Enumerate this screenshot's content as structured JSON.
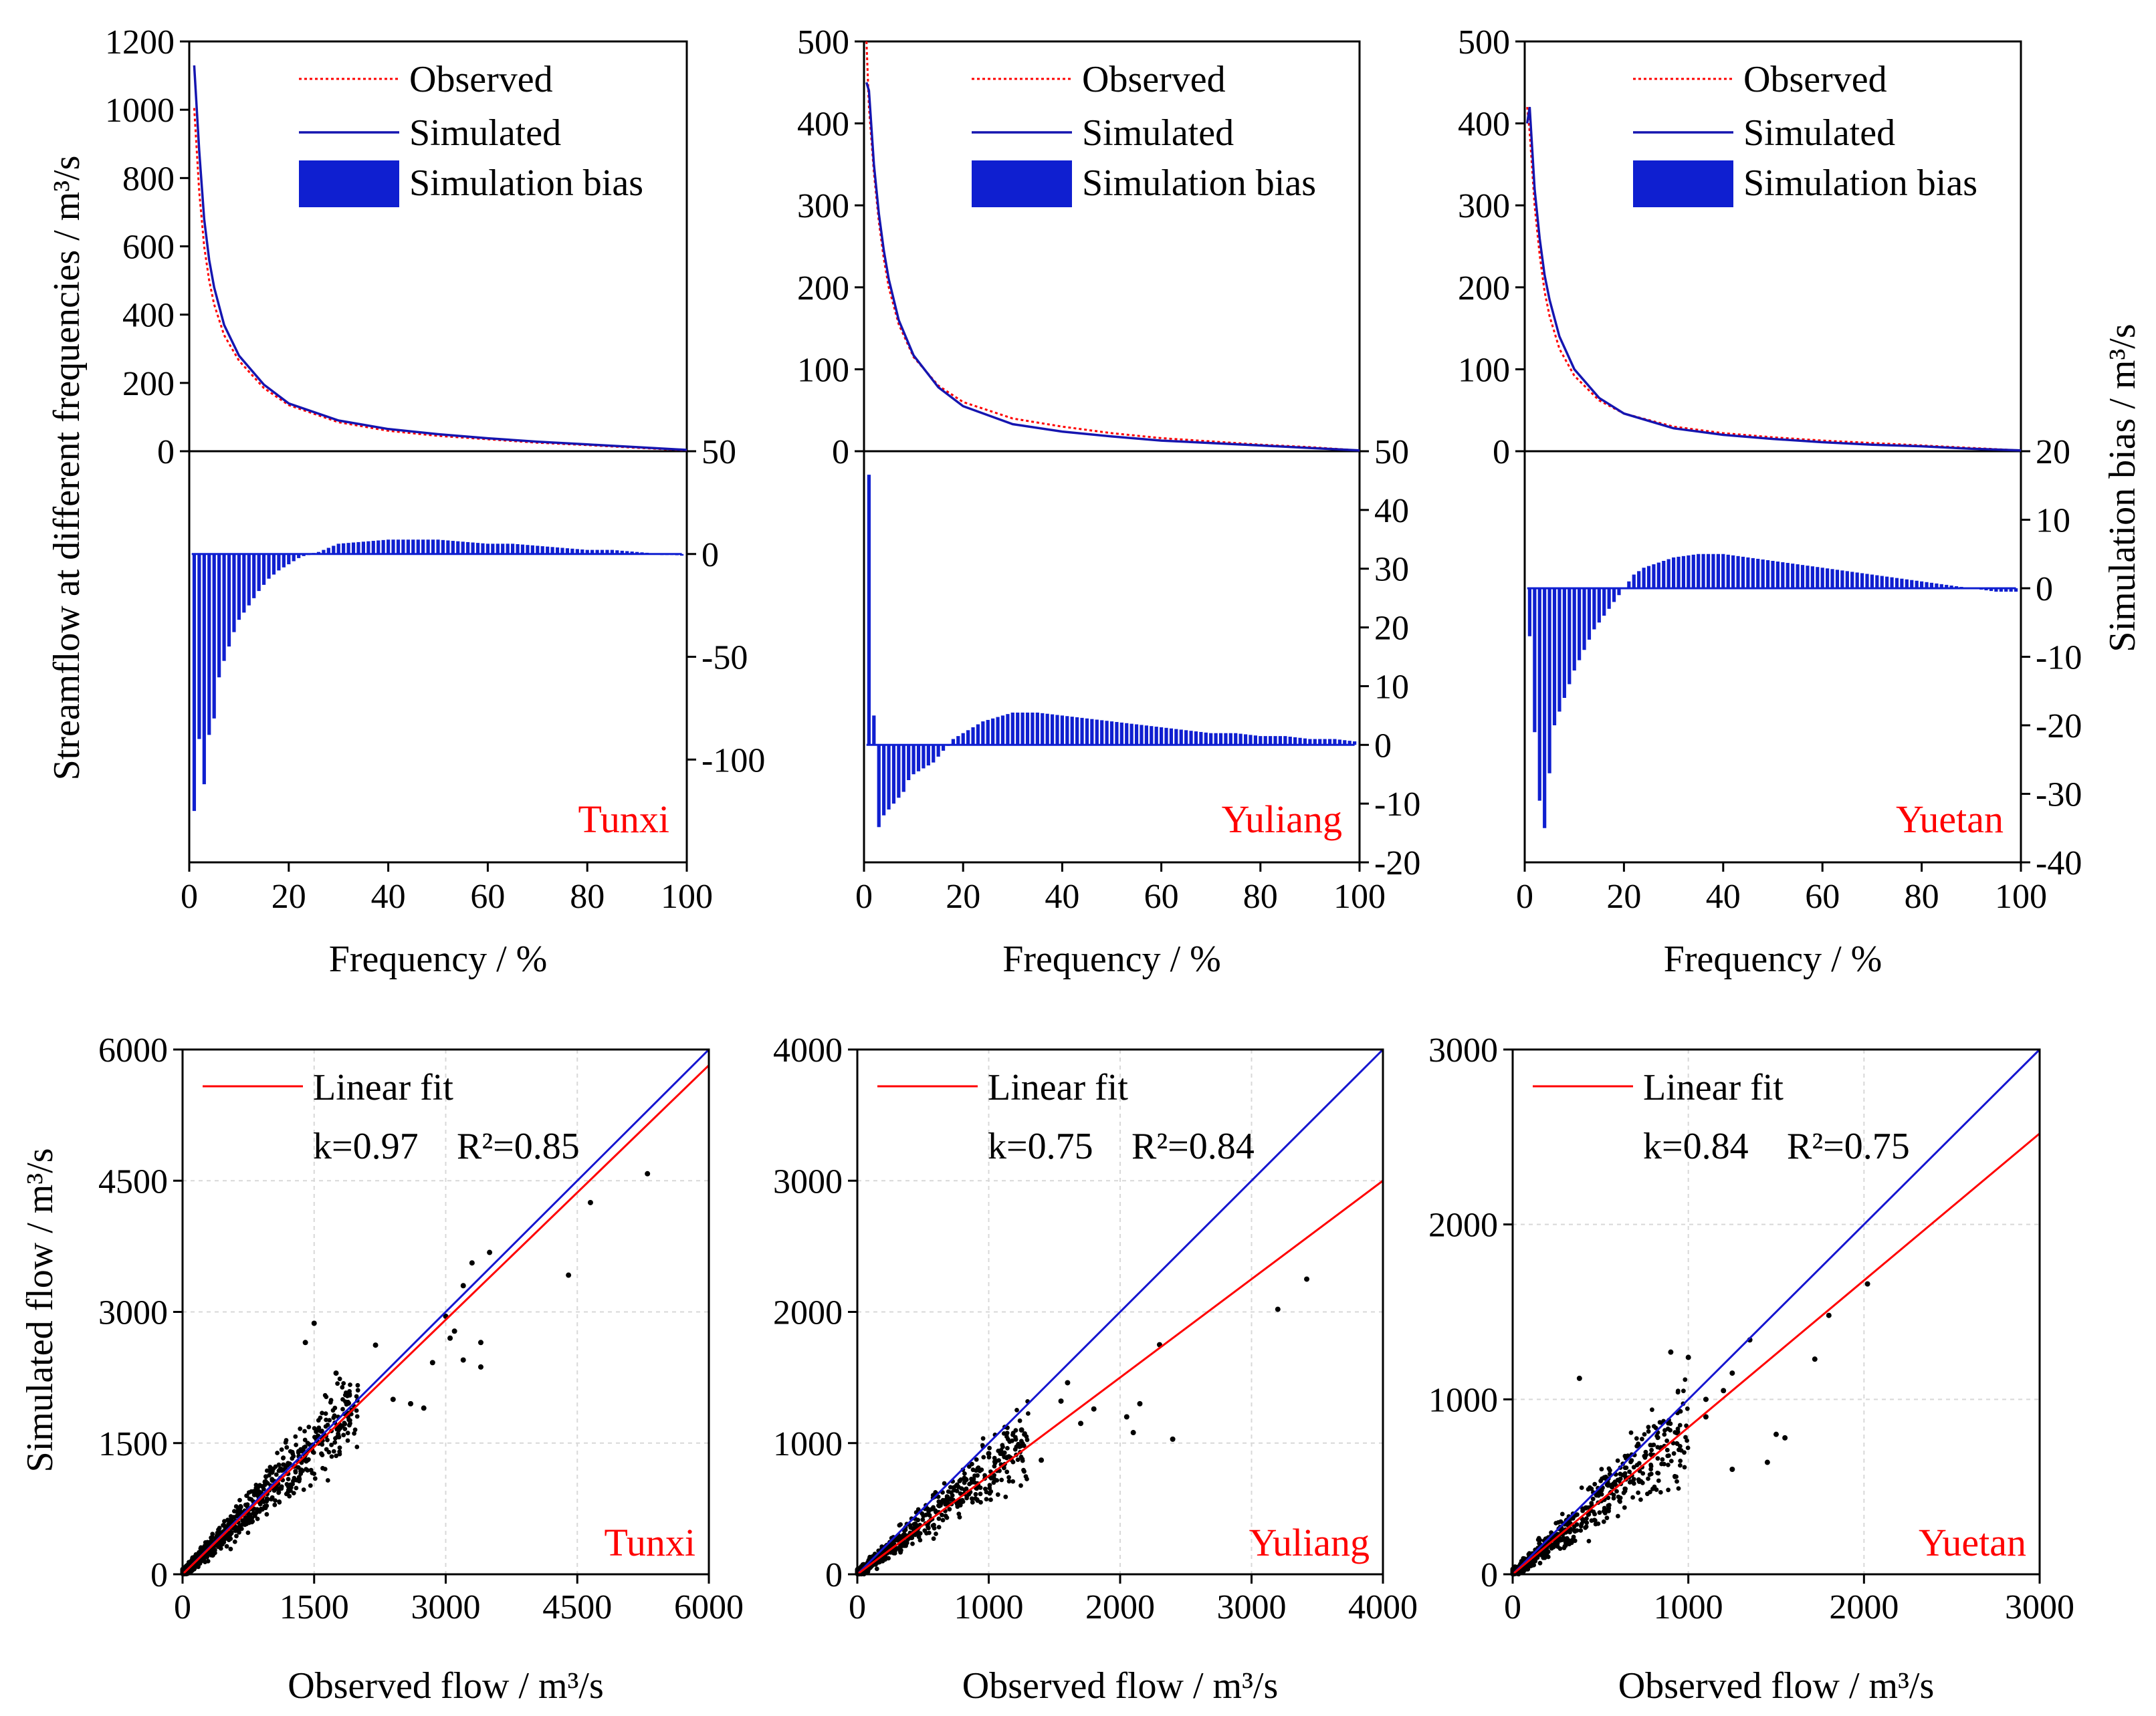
{
  "colors": {
    "observed": "#ff0000",
    "simulated": "#1515b0",
    "bias": "#0f1fd0",
    "fit": "#ff0000",
    "one_to_one": "#1515d0",
    "station": "#ff0000",
    "scatter": "#000000"
  },
  "labels": {
    "duration_ylabel": "Streamflow at different frequencies / m³/s",
    "bias_ylabel": "Simulation bias / m³/s",
    "freq_xlabel": "Frequency / %",
    "scatter_ylabel": "Simulated flow / m³/s",
    "scatter_xlabel": "Observed flow / m³/s"
  },
  "chart_data": [
    {
      "type": "line",
      "station": "Tunxi",
      "xlabel": "Frequency / %",
      "ylabel": "Streamflow at different frequencies / m³/s",
      "xlim": [
        0,
        100
      ],
      "ylim": [
        0,
        1200
      ],
      "xticks": [
        0,
        20,
        40,
        60,
        80,
        100
      ],
      "yticks": [
        0,
        200,
        400,
        600,
        800,
        1000,
        1200
      ],
      "legend": [
        "Observed",
        "Simulated",
        "Simulation bias"
      ],
      "legend_position": "top-right",
      "x": [
        1,
        2,
        3,
        4,
        5,
        7,
        10,
        15,
        20,
        30,
        40,
        50,
        60,
        70,
        80,
        90,
        100
      ],
      "series": [
        {
          "name": "Observed",
          "values": [
            1005,
            760,
            600,
            500,
            430,
            340,
            265,
            185,
            135,
            85,
            60,
            45,
            35,
            25,
            18,
            10,
            3
          ]
        },
        {
          "name": "Simulated",
          "values": [
            1130,
            880,
            680,
            560,
            480,
            370,
            280,
            195,
            140,
            90,
            65,
            50,
            38,
            28,
            20,
            12,
            4
          ]
        }
      ]
    },
    {
      "type": "bar",
      "station": "Tunxi",
      "ylabel": "",
      "ylim": [
        -150,
        50
      ],
      "yticks": [
        50,
        0,
        -50,
        -100
      ],
      "x": [
        1,
        2,
        3,
        4,
        5,
        6,
        7,
        8,
        9,
        10,
        12,
        14,
        16,
        18,
        20,
        22,
        24,
        26,
        28,
        30,
        35,
        40,
        45,
        50,
        55,
        60,
        65,
        70,
        75,
        80,
        85,
        90,
        95,
        100
      ],
      "values": [
        -125,
        -90,
        -112,
        -88,
        -80,
        -60,
        -52,
        -45,
        -38,
        -32,
        -25,
        -18,
        -12,
        -8,
        -5,
        -2,
        0,
        1,
        3,
        5,
        6,
        7,
        7,
        7,
        6,
        5,
        5,
        4,
        3,
        2,
        2,
        1,
        0,
        -1
      ]
    },
    {
      "type": "line",
      "station": "Yuliang",
      "xlabel": "Frequency / %",
      "xlim": [
        0,
        100
      ],
      "ylim": [
        0,
        500
      ],
      "xticks": [
        0,
        20,
        40,
        60,
        80,
        100
      ],
      "yticks": [
        0,
        100,
        200,
        300,
        400,
        500
      ],
      "legend": [
        "Observed",
        "Simulated",
        "Simulation bias"
      ],
      "legend_position": "top-right",
      "x": [
        0.5,
        1,
        2,
        3,
        4,
        5,
        7,
        10,
        15,
        20,
        30,
        40,
        50,
        60,
        70,
        80,
        90,
        100
      ],
      "series": [
        {
          "name": "Observed",
          "values": [
            500,
            420,
            340,
            280,
            235,
            200,
            155,
            115,
            80,
            60,
            40,
            30,
            22,
            16,
            12,
            8,
            5,
            1
          ]
        },
        {
          "name": "Simulated",
          "values": [
            450,
            440,
            350,
            290,
            245,
            210,
            160,
            117,
            78,
            55,
            33,
            24,
            18,
            13,
            10,
            7,
            4,
            1
          ]
        }
      ]
    },
    {
      "type": "bar",
      "station": "Yuliang",
      "ylim": [
        -20,
        50
      ],
      "yticks": [
        50,
        40,
        30,
        20,
        10,
        0,
        -10,
        -20
      ],
      "x": [
        1,
        2,
        3,
        4,
        5,
        6,
        7,
        8,
        9,
        10,
        12,
        14,
        16,
        18,
        20,
        22,
        24,
        26,
        28,
        30,
        35,
        40,
        45,
        50,
        55,
        60,
        65,
        70,
        75,
        80,
        85,
        90,
        95,
        100
      ],
      "values": [
        46,
        5,
        -14,
        -12,
        -11,
        -10,
        -9,
        -8,
        -6,
        -5,
        -4,
        -3,
        -1,
        1,
        2,
        3,
        4,
        4.5,
        5,
        5.5,
        5.5,
        5,
        4.5,
        4,
        3.5,
        3,
        2.5,
        2,
        2,
        1.5,
        1.5,
        1,
        1,
        0.5
      ]
    },
    {
      "type": "line",
      "station": "Yuetan",
      "xlabel": "Frequency / %",
      "xlim": [
        0,
        100
      ],
      "ylim": [
        0,
        500
      ],
      "xticks": [
        0,
        20,
        40,
        60,
        80,
        100
      ],
      "yticks": [
        0,
        100,
        200,
        300,
        400,
        500
      ],
      "legend": [
        "Observed",
        "Simulated",
        "Simulation bias"
      ],
      "legend_position": "top-right",
      "x": [
        0.5,
        1,
        2,
        3,
        4,
        5,
        7,
        10,
        15,
        20,
        30,
        40,
        50,
        60,
        70,
        80,
        90,
        100
      ],
      "series": [
        {
          "name": "Observed",
          "values": [
            420,
            390,
            300,
            240,
            195,
            165,
            125,
            92,
            62,
            46,
            30,
            22,
            17,
            13,
            10,
            7,
            4,
            1
          ]
        },
        {
          "name": "Simulated",
          "values": [
            400,
            420,
            320,
            260,
            215,
            185,
            140,
            100,
            65,
            46,
            28,
            20,
            15,
            11,
            8,
            6,
            3,
            1
          ]
        }
      ]
    },
    {
      "type": "bar",
      "station": "Yuetan",
      "ylabel": "Simulation bias / m³/s",
      "ylim": [
        -40,
        20
      ],
      "yticks": [
        20,
        10,
        0,
        -10,
        -20,
        -30,
        -40
      ],
      "x": [
        1,
        2,
        3,
        4,
        5,
        6,
        7,
        8,
        9,
        10,
        12,
        14,
        16,
        18,
        20,
        22,
        24,
        26,
        28,
        30,
        35,
        40,
        45,
        50,
        55,
        60,
        65,
        70,
        75,
        80,
        85,
        90,
        95,
        100
      ],
      "values": [
        -7,
        -21,
        -31,
        -35,
        -27,
        -20,
        -18,
        -16,
        -14,
        -12,
        -9,
        -6,
        -4,
        -2,
        0,
        2,
        3,
        3.5,
        4,
        4.5,
        5,
        5,
        4.5,
        4,
        3.5,
        3,
        2.5,
        2,
        1.5,
        1,
        0.5,
        0,
        -0.5,
        -0.5
      ]
    },
    {
      "type": "scatter",
      "station": "Tunxi",
      "xlabel": "Observed flow / m³/s",
      "ylabel": "Simulated flow / m³/s",
      "xlim": [
        0,
        6000
      ],
      "ylim": [
        0,
        6000
      ],
      "xticks": [
        0,
        1500,
        3000,
        4500,
        6000
      ],
      "yticks": [
        0,
        1500,
        3000,
        4500,
        6000
      ],
      "grid": true,
      "legend": [
        "Linear fit"
      ],
      "legend_position": "top-left",
      "fit": {
        "k": 0.97,
        "r2": 0.85
      },
      "k_label": "k=0.97",
      "r2_label": "R²=0.85",
      "points": [
        [
          5300,
          4580
        ],
        [
          4650,
          4250
        ],
        [
          4400,
          3420
        ],
        [
          3500,
          3680
        ],
        [
          3300,
          3560
        ],
        [
          3200,
          3300
        ],
        [
          3000,
          2950
        ],
        [
          3100,
          2780
        ],
        [
          3050,
          2700
        ],
        [
          3400,
          2650
        ],
        [
          3200,
          2450
        ],
        [
          2850,
          2420
        ],
        [
          3400,
          2370
        ],
        [
          1750,
          2300
        ],
        [
          1900,
          2060
        ],
        [
          1500,
          2870
        ],
        [
          1400,
          2650
        ],
        [
          2200,
          2620
        ],
        [
          2400,
          2000
        ],
        [
          2750,
          1900
        ],
        [
          2600,
          1950
        ]
      ],
      "cloud": {
        "xmax": 2000,
        "ratio": 0.97,
        "spread": 0.42,
        "count": 900
      }
    },
    {
      "type": "scatter",
      "station": "Yuliang",
      "xlabel": "Observed flow / m³/s",
      "ylabel": "",
      "xlim": [
        0,
        4000
      ],
      "ylim": [
        0,
        4000
      ],
      "xticks": [
        0,
        1000,
        2000,
        3000,
        4000
      ],
      "yticks": [
        0,
        1000,
        2000,
        3000,
        4000
      ],
      "grid": true,
      "legend": [
        "Linear fit"
      ],
      "legend_position": "top-left",
      "fit": {
        "k": 0.75,
        "r2": 0.84
      },
      "k_label": "k=0.75",
      "r2_label": "R²=0.84",
      "points": [
        [
          3420,
          2250
        ],
        [
          3200,
          2020
        ],
        [
          2300,
          1750
        ],
        [
          2400,
          1030
        ],
        [
          2150,
          1300
        ],
        [
          2100,
          1080
        ],
        [
          1600,
          1460
        ],
        [
          1550,
          1320
        ],
        [
          1800,
          1260
        ],
        [
          1700,
          1150
        ],
        [
          1250,
          1100
        ],
        [
          1000,
          920
        ],
        [
          2050,
          1200
        ],
        [
          1400,
          870
        ]
      ],
      "cloud": {
        "xmax": 1300,
        "ratio": 0.8,
        "spread": 0.45,
        "count": 650
      }
    },
    {
      "type": "scatter",
      "station": "Yuetan",
      "xlabel": "Observed flow / m³/s",
      "ylabel": "",
      "xlim": [
        0,
        3000
      ],
      "ylim": [
        0,
        3000
      ],
      "xticks": [
        0,
        1000,
        2000,
        3000
      ],
      "yticks": [
        0,
        1000,
        2000,
        3000
      ],
      "grid": true,
      "legend": [
        "Linear fit"
      ],
      "legend_position": "top-left",
      "fit": {
        "k": 0.84,
        "r2": 0.75
      },
      "k_label": "k=0.84",
      "r2_label": "R²=0.75",
      "points": [
        [
          2020,
          1660
        ],
        [
          1720,
          1230
        ],
        [
          1800,
          1480
        ],
        [
          1350,
          1340
        ],
        [
          1250,
          1150
        ],
        [
          1200,
          1050
        ],
        [
          1100,
          900
        ],
        [
          1500,
          800
        ],
        [
          1550,
          780
        ],
        [
          1450,
          640
        ],
        [
          1250,
          600
        ],
        [
          1000,
          1240
        ],
        [
          900,
          1270
        ],
        [
          380,
          1120
        ],
        [
          1100,
          1000
        ]
      ],
      "cloud": {
        "xmax": 1000,
        "ratio": 0.84,
        "spread": 0.55,
        "count": 650
      }
    }
  ]
}
